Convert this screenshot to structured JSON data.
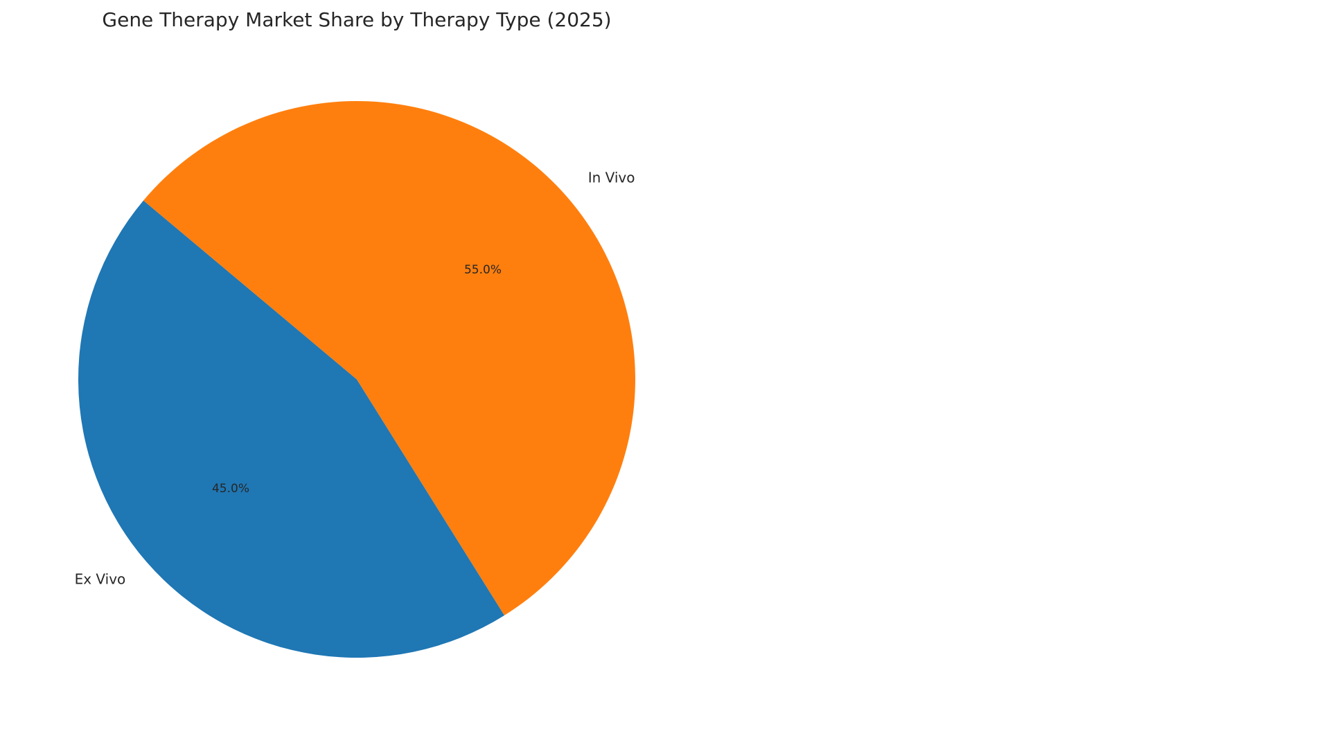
{
  "chart_data": {
    "type": "pie",
    "title": "Gene Therapy Market Share by Therapy Type (2025)",
    "categories": [
      "Ex Vivo",
      "In Vivo"
    ],
    "values": [
      45.0,
      55.0
    ],
    "percent_labels": [
      "45.0%",
      "55.0%"
    ],
    "colors": [
      "#1f77b4",
      "#ff7f0e"
    ],
    "start_angle_deg": 140,
    "direction": "counterclockwise",
    "legend": "none"
  }
}
